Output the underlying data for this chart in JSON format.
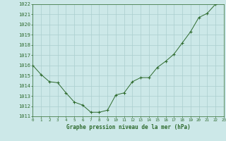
{
  "x": [
    0,
    1,
    2,
    3,
    4,
    5,
    6,
    7,
    8,
    9,
    10,
    11,
    12,
    13,
    14,
    15,
    16,
    17,
    18,
    19,
    20,
    21,
    22,
    23
  ],
  "y": [
    1016.0,
    1015.1,
    1014.4,
    1014.3,
    1013.3,
    1012.4,
    1012.1,
    1011.4,
    1011.4,
    1011.6,
    1013.1,
    1013.3,
    1014.4,
    1014.8,
    1014.8,
    1015.8,
    1016.4,
    1017.1,
    1018.2,
    1019.3,
    1020.7,
    1021.1,
    1022.0,
    1022.2
  ],
  "line_color": "#2d6a2d",
  "marker_color": "#2d6a2d",
  "bg_color": "#cce8e8",
  "grid_color": "#aacece",
  "text_color": "#2d6a2d",
  "xlabel": "Graphe pression niveau de la mer (hPa)",
  "ylim_min": 1011,
  "ylim_max": 1022,
  "xlim_min": 0,
  "xlim_max": 23,
  "yticks": [
    1011,
    1012,
    1013,
    1014,
    1015,
    1016,
    1017,
    1018,
    1019,
    1020,
    1021,
    1022
  ],
  "xticks": [
    0,
    1,
    2,
    3,
    4,
    5,
    6,
    7,
    8,
    9,
    10,
    11,
    12,
    13,
    14,
    15,
    16,
    17,
    18,
    19,
    20,
    21,
    22,
    23
  ]
}
